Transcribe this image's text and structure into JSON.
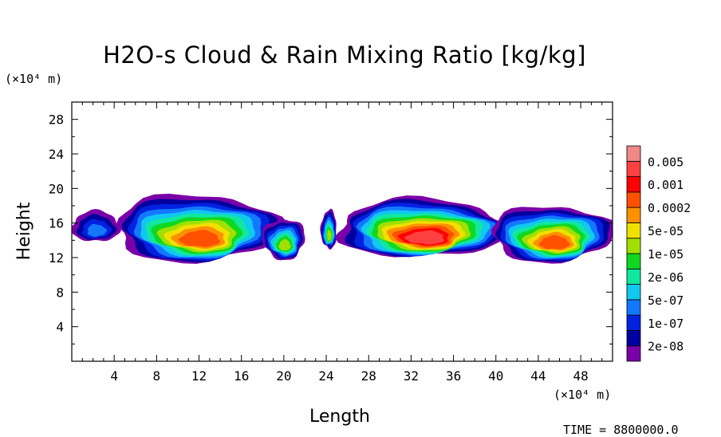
{
  "chart_data": {
    "type": "heatmap",
    "title": "H2O-s Cloud & Rain Mixing Ratio [kg/kg]",
    "xlabel": "Length",
    "ylabel": "Height",
    "x_unit": "(×10⁴ m)",
    "y_unit": "(×10⁴ m)",
    "xlim": [
      0,
      51
    ],
    "ylim": [
      0,
      30
    ],
    "x_ticks": [
      4,
      8,
      12,
      16,
      20,
      24,
      28,
      32,
      36,
      40,
      44,
      48
    ],
    "y_ticks": [
      4,
      8,
      12,
      16,
      20,
      24,
      28
    ],
    "colorbar": {
      "levels": [
        "2e-08",
        "1e-07",
        "5e-07",
        "2e-06",
        "1e-05",
        "5e-05",
        "0.0002",
        "0.001",
        "0.005"
      ],
      "colors": [
        "#7a00a8",
        "#0000a0",
        "#0022e0",
        "#1478ff",
        "#10c8f0",
        "#10e8a0",
        "#10d820",
        "#a0e000",
        "#f0e000",
        "#ff9000",
        "#ff5000",
        "#ff0000",
        "#ff4040",
        "#f08888"
      ]
    },
    "features": [
      {
        "x": [
          0,
          4.5
        ],
        "y": [
          13.8,
          17.4
        ],
        "max_level": "1e-07"
      },
      {
        "x": [
          4,
          19.5
        ],
        "y": [
          11.5,
          19.3
        ],
        "max_level": "0.0002"
      },
      {
        "x": [
          18,
          22
        ],
        "y": [
          11.8,
          16.5
        ],
        "max_level": "1e-05"
      },
      {
        "x": [
          23.5,
          25
        ],
        "y": [
          13,
          17.5
        ],
        "max_level": "1e-05"
      },
      {
        "x": [
          25,
          41
        ],
        "y": [
          12,
          18.8
        ],
        "max_level": "0.001"
      },
      {
        "x": [
          39.5,
          51
        ],
        "y": [
          11.5,
          18
        ],
        "max_level": "0.0002"
      }
    ],
    "time_label": "TIME = 8800000.0"
  }
}
